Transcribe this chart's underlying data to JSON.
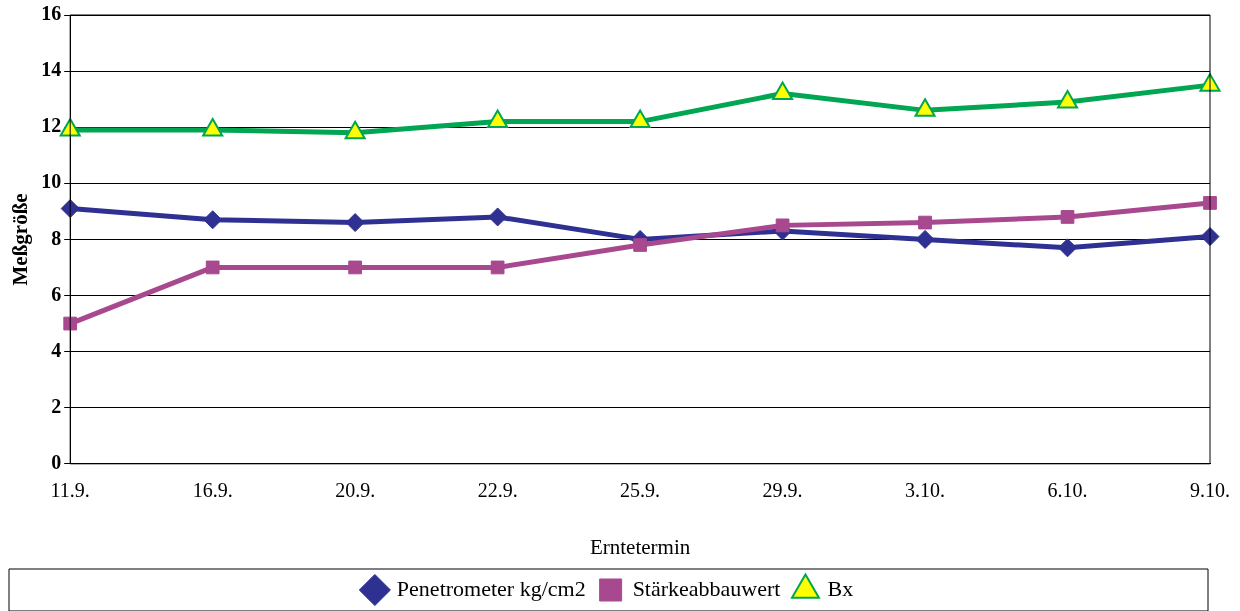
{
  "chart_data": {
    "type": "line",
    "xlabel": "Erntetermin",
    "ylabel": "Meßgröße",
    "categories": [
      "11.9.",
      "16.9.",
      "20.9.",
      "22.9.",
      "25.9.",
      "29.9.",
      "3.10.",
      "6.10.",
      "9.10."
    ],
    "series": [
      {
        "name": "Penetrometer kg/cm2",
        "color": "#2e3192",
        "marker": "diamond",
        "values": [
          9.1,
          8.7,
          8.6,
          8.8,
          8.0,
          8.3,
          8.0,
          7.7,
          8.1
        ]
      },
      {
        "name": "Stärkeabbauwert",
        "color": "#a8488f",
        "marker": "square",
        "values": [
          5.0,
          7.0,
          7.0,
          7.0,
          7.8,
          8.5,
          8.6,
          8.8,
          9.3
        ]
      },
      {
        "name": "Bx",
        "color": "#00a651",
        "marker": "triangle",
        "values": [
          11.9,
          11.9,
          11.8,
          12.2,
          12.2,
          13.2,
          12.6,
          12.9,
          13.5
        ]
      }
    ],
    "ylim": [
      0,
      16
    ],
    "yticks": [
      0,
      2,
      4,
      6,
      8,
      10,
      12,
      14,
      16
    ],
    "grid": "y",
    "legend": "bottom"
  }
}
